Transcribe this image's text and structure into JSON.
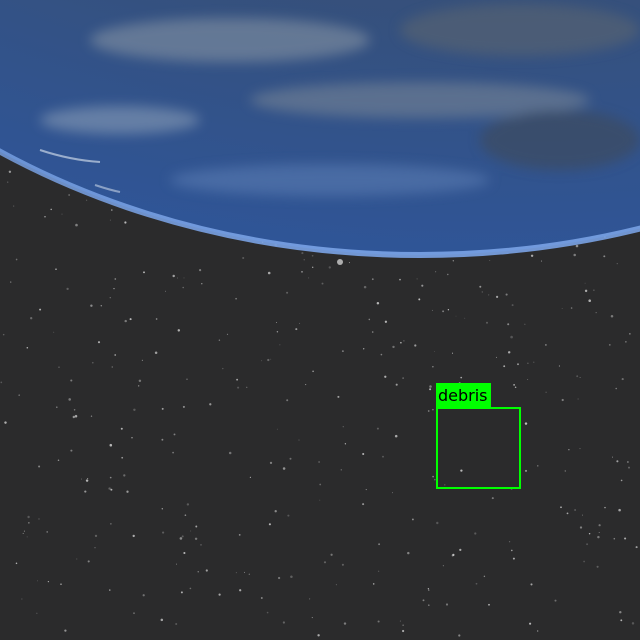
{
  "detections": [
    {
      "label": "debris",
      "box_color": "#00ff00",
      "label_text_color": "#000000"
    }
  ],
  "scene": {
    "background_color": "#2b2b2c",
    "earth_ocean_color": "#3a5a8c",
    "atmosphere_color": "#6f9be0"
  }
}
